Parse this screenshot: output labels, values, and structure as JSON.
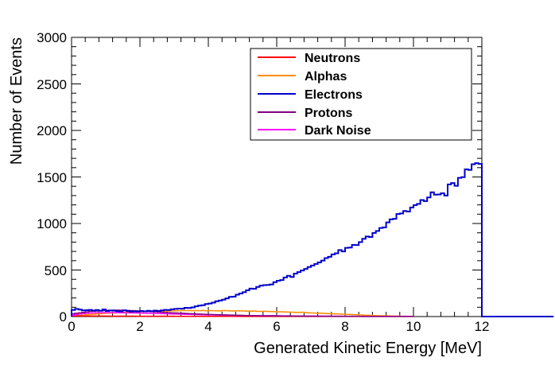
{
  "chart_data": {
    "type": "histogram",
    "xlabel": "Generated Kinetic Energy [MeV]",
    "ylabel": "Number of Events",
    "xlim": [
      0,
      12
    ],
    "ylim": [
      0,
      3000
    ],
    "x_ticks": [
      "0",
      "2",
      "4",
      "6",
      "8",
      "10",
      "12"
    ],
    "y_ticks": [
      "0",
      "500",
      "1000",
      "1500",
      "2000",
      "2500",
      "3000"
    ],
    "grid": false,
    "legend_position": "top-right",
    "bin_width": 0.1,
    "series": [
      {
        "name": "Neutrons",
        "color": "#ff0000",
        "values": [
          6,
          6,
          6,
          5,
          5,
          5,
          5,
          5,
          5,
          5,
          5,
          4,
          4,
          4,
          4,
          4,
          4,
          4,
          4,
          3,
          3,
          3,
          3,
          3,
          3,
          3,
          3,
          3,
          3,
          3,
          2,
          2,
          2,
          2,
          2,
          2,
          2,
          2,
          2,
          2,
          2,
          2,
          2,
          2,
          2,
          2,
          2,
          2,
          1,
          1,
          1,
          1,
          1,
          1,
          1,
          1,
          1,
          1,
          1,
          1,
          1,
          1,
          1,
          1,
          1,
          1,
          1,
          1,
          1,
          1,
          1,
          1,
          1,
          1,
          1,
          1,
          1,
          1,
          1,
          1,
          1,
          1,
          1,
          1,
          1,
          1,
          1,
          1,
          1,
          1,
          1,
          1,
          1,
          1,
          1,
          1,
          1,
          1,
          1,
          1
        ]
      },
      {
        "name": "Alphas",
        "color": "#ff8c00",
        "values": [
          6,
          8,
          12,
          15,
          18,
          22,
          25,
          28,
          31,
          34,
          36,
          38,
          40,
          42,
          44,
          46,
          47,
          48,
          49,
          50,
          51,
          53,
          54,
          55,
          56,
          57,
          58,
          59,
          60,
          61,
          62,
          63,
          64,
          64,
          64,
          63,
          64,
          63,
          65,
          62,
          64,
          63,
          62,
          61,
          64,
          63,
          61,
          60,
          62,
          61,
          60,
          58,
          57,
          59,
          56,
          55,
          57,
          54,
          53,
          52,
          50,
          51,
          49,
          48,
          47,
          45,
          44,
          46,
          42,
          40,
          39,
          37,
          36,
          34,
          33,
          31,
          30,
          28,
          27,
          25,
          23,
          22,
          20,
          19,
          17,
          15,
          14,
          13,
          11,
          10,
          9,
          8,
          7,
          6,
          5,
          4,
          3,
          3,
          2,
          2
        ]
      },
      {
        "name": "Electrons",
        "color": "#0000cc",
        "values": [
          70,
          82,
          75,
          66,
          68,
          72,
          64,
          70,
          62,
          76,
          60,
          65,
          63,
          58,
          55,
          67,
          60,
          52,
          57,
          54,
          60,
          55,
          62,
          58,
          64,
          60,
          66,
          72,
          70,
          78,
          82,
          86,
          84,
          94,
          92,
          98,
          110,
          118,
          122,
          135,
          140,
          150,
          165,
          172,
          182,
          196,
          212,
          214,
          235,
          248,
          262,
          282,
          300,
          298,
          318,
          332,
          338,
          340,
          345,
          370,
          385,
          392,
          420,
          438,
          425,
          462,
          478,
          495,
          512,
          532,
          548,
          565,
          582,
          602,
          628,
          642,
          668,
          680,
          715,
          700,
          738,
          742,
          770,
          768,
          800,
          835,
          860,
          855,
          898,
          920,
          952,
          958,
          1012,
          1045,
          1050,
          1102,
          1108,
          1135,
          1128,
          1172,
          1198,
          1210,
          1252,
          1240,
          1280,
          1335,
          1310,
          1312,
          1325,
          1300,
          1420,
          1435,
          1405,
          1490,
          1498,
          1582,
          1576,
          1637,
          1648,
          1640,
          0,
          0,
          0,
          0,
          0,
          0,
          0,
          0,
          0,
          0,
          0,
          0,
          0,
          0,
          0,
          0,
          0,
          0,
          0,
          0,
          0
        ]
      },
      {
        "name": "Protons",
        "color": "#800080",
        "values": [
          30,
          35,
          40,
          45,
          50,
          55,
          58,
          60,
          62,
          64,
          66,
          67,
          68,
          68,
          67,
          66,
          65,
          64,
          62,
          60,
          58,
          56,
          54,
          52,
          50,
          48,
          46,
          44,
          42,
          40,
          38,
          36,
          35,
          33,
          31,
          30,
          28,
          27,
          25,
          24,
          22,
          21,
          20,
          19,
          18,
          17,
          16,
          15,
          14,
          13,
          12,
          11,
          11,
          10,
          10,
          9,
          9,
          8,
          8,
          7,
          7,
          6,
          6,
          6,
          5,
          5,
          5,
          4,
          4,
          4,
          4,
          3,
          3,
          3,
          3,
          3,
          2,
          2,
          2,
          2,
          2,
          2,
          2,
          2,
          2,
          1,
          1,
          1,
          1,
          1,
          1,
          1,
          1,
          1,
          1,
          1,
          1,
          1,
          1,
          1
        ]
      },
      {
        "name": "Dark Noise",
        "color": "#ff00ff",
        "values": [
          15,
          22,
          28,
          32,
          35,
          38,
          40,
          42,
          42,
          43,
          43,
          43,
          42,
          42,
          41,
          41,
          40,
          40,
          39,
          38,
          37,
          36,
          35,
          34,
          33,
          32,
          31,
          30,
          29,
          28,
          27,
          26,
          25,
          24,
          23,
          22,
          21,
          20,
          19,
          18,
          18,
          17,
          16,
          15,
          15,
          14,
          13,
          13,
          12,
          12,
          11,
          11,
          10,
          10,
          9,
          9,
          9,
          8,
          8,
          8,
          7,
          7,
          7,
          7,
          6,
          6,
          6,
          6,
          5,
          5,
          5,
          5,
          5,
          4,
          4,
          4,
          4,
          4,
          4,
          3,
          3,
          3,
          3,
          3,
          3,
          3,
          3,
          2,
          2,
          2,
          2,
          2,
          2,
          2,
          2,
          2,
          2,
          2,
          2,
          2
        ]
      }
    ]
  }
}
